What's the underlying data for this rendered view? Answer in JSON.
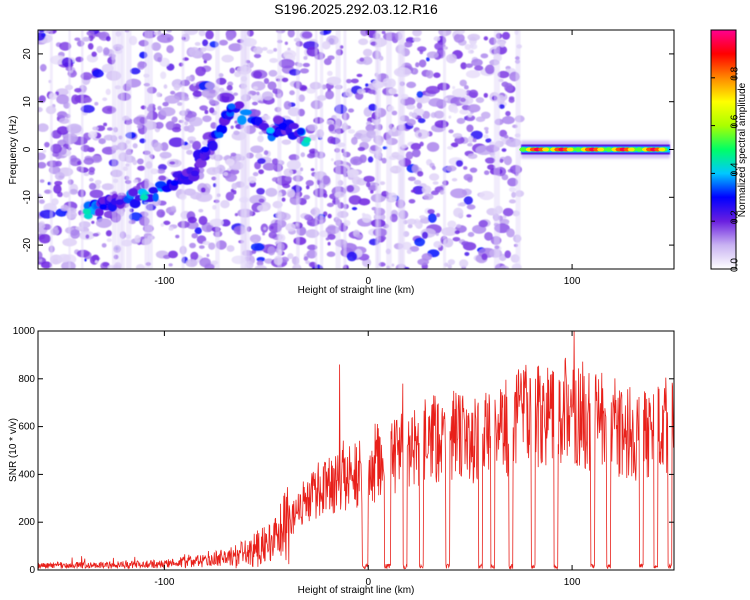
{
  "title": "S196.2025.292.03.12.R16",
  "chart_data": [
    {
      "type": "heatmap",
      "title": "S196.2025.292.03.12.R16",
      "xlabel": "Height of straight line (km)",
      "ylabel": "Frequency (Hz)",
      "xlim": [
        -162,
        150
      ],
      "ylim": [
        -25,
        25
      ],
      "xticks": [
        -100,
        0,
        100
      ],
      "yticks": [
        -20,
        -10,
        0,
        10,
        20
      ],
      "colorbar": {
        "label": "Normalized spectral amplitude",
        "range": [
          0,
          1
        ],
        "ticks": [
          "0.0",
          "0.2",
          "0.4",
          "0.6",
          "0.8"
        ],
        "tick_values": [
          0,
          0.2,
          0.4,
          0.6,
          0.8
        ],
        "colors": [
          "#ffffff",
          "#c9b3f2",
          "#6a1fe0",
          "#0000ff",
          "#00c8ff",
          "#00ff66",
          "#aaff00",
          "#ffff00",
          "#ff8800",
          "#ff0000",
          "#ff0090"
        ]
      },
      "ridge": [
        {
          "x": -138,
          "y": -13,
          "a": 0.45
        },
        {
          "x": -130,
          "y": -12,
          "a": 0.3
        },
        {
          "x": -122,
          "y": -11,
          "a": 0.25
        },
        {
          "x": -110,
          "y": -10,
          "a": 0.45
        },
        {
          "x": -95,
          "y": -7,
          "a": 0.3
        },
        {
          "x": -85,
          "y": -5,
          "a": 0.25
        },
        {
          "x": -80,
          "y": 0,
          "a": 0.3
        },
        {
          "x": -73,
          "y": 3,
          "a": 0.35
        },
        {
          "x": -67,
          "y": 9,
          "a": 0.35
        },
        {
          "x": -48,
          "y": 4,
          "a": 0.4
        },
        {
          "x": -42,
          "y": 5,
          "a": 0.3
        },
        {
          "x": -30,
          "y": 2,
          "a": 0.45
        }
      ],
      "carrier": {
        "x_start": 75,
        "x_end": 148,
        "y": 0,
        "peak_centers": [
          83,
          95,
          110,
          125,
          140
        ],
        "peak_amplitude": 0.95
      }
    },
    {
      "type": "line",
      "xlabel": "Height of straight line (km)",
      "ylabel": "SNR (10 * v/v)",
      "xlim": [
        -162,
        150
      ],
      "ylim": [
        0,
        1000
      ],
      "xticks": [
        -100,
        0,
        100
      ],
      "yticks": [
        0,
        200,
        400,
        600,
        800,
        1000
      ],
      "series": [
        {
          "name": "SNR",
          "color": "#e8201a",
          "envelope_x": [
            -162,
            -130,
            -100,
            -80,
            -60,
            -45,
            -35,
            -25,
            -15,
            -5,
            5,
            15,
            25,
            35,
            45,
            55,
            65,
            75,
            85,
            95,
            105,
            115,
            125,
            135,
            145,
            150
          ],
          "envelope_y": [
            20,
            20,
            25,
            40,
            70,
            120,
            250,
            330,
            360,
            400,
            440,
            480,
            520,
            550,
            560,
            540,
            580,
            640,
            660,
            660,
            650,
            620,
            580,
            560,
            620,
            600
          ],
          "spikes": [
            {
              "x": -14,
              "y": 860
            },
            {
              "x": 101,
              "y": 1000
            },
            {
              "x": 17,
              "y": 780
            },
            {
              "x": 45,
              "y": 730
            },
            {
              "x": 82,
              "y": 800
            }
          ],
          "dropouts": [
            [
              -3,
              0
            ],
            [
              8,
              11
            ],
            [
              17,
              19
            ],
            [
              25,
              27
            ],
            [
              38,
              40
            ],
            [
              54,
              56
            ],
            [
              60,
              62
            ],
            [
              69,
              71
            ],
            [
              80,
              82
            ],
            [
              91,
              93
            ],
            [
              109,
              111
            ],
            [
              117,
              119
            ],
            [
              133,
              135
            ],
            [
              140,
              142
            ],
            [
              147,
              149
            ]
          ]
        }
      ]
    }
  ]
}
